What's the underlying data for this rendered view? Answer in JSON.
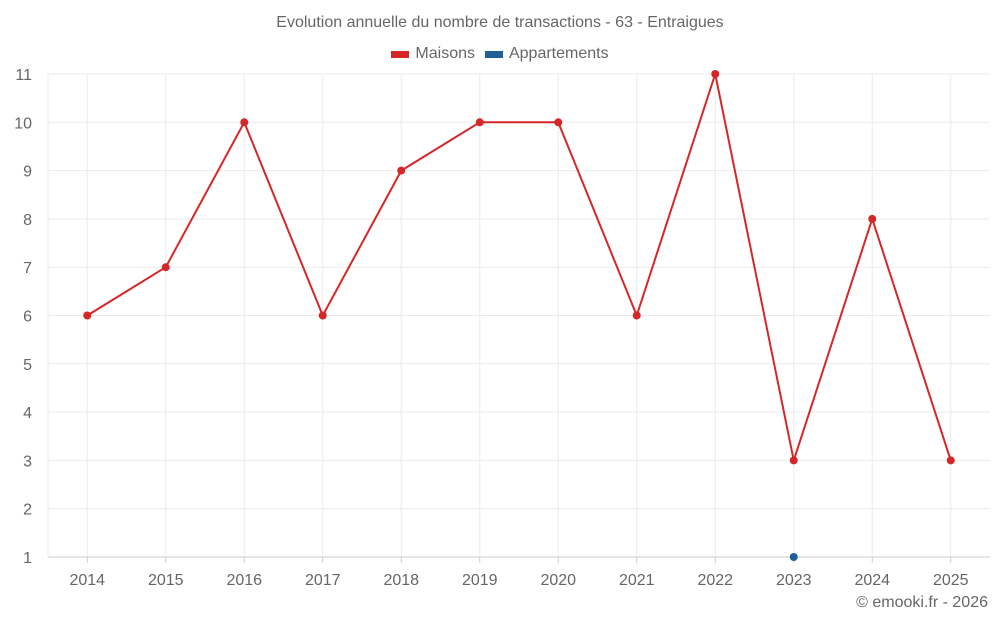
{
  "chart_data": {
    "type": "line",
    "title": "Evolution annuelle du nombre de transactions - 63 - Entraigues",
    "xlabel": "",
    "ylabel": "",
    "categories": [
      "2014",
      "2015",
      "2016",
      "2017",
      "2018",
      "2019",
      "2020",
      "2021",
      "2022",
      "2023",
      "2024",
      "2025"
    ],
    "ylim": [
      1,
      11
    ],
    "yticks": [
      1,
      2,
      3,
      4,
      5,
      6,
      7,
      8,
      9,
      10,
      11
    ],
    "grid": true,
    "legend_position": "top-center",
    "series": [
      {
        "name": "Maisons",
        "color": "#d62728",
        "values": [
          6,
          7,
          10,
          6,
          9,
          10,
          10,
          6,
          11,
          3,
          8,
          3
        ]
      },
      {
        "name": "Appartements",
        "color": "#1f5f96",
        "values": [
          null,
          null,
          null,
          null,
          null,
          null,
          null,
          null,
          null,
          1,
          null,
          null
        ]
      }
    ]
  },
  "credit": "© emooki.fr - 2026"
}
